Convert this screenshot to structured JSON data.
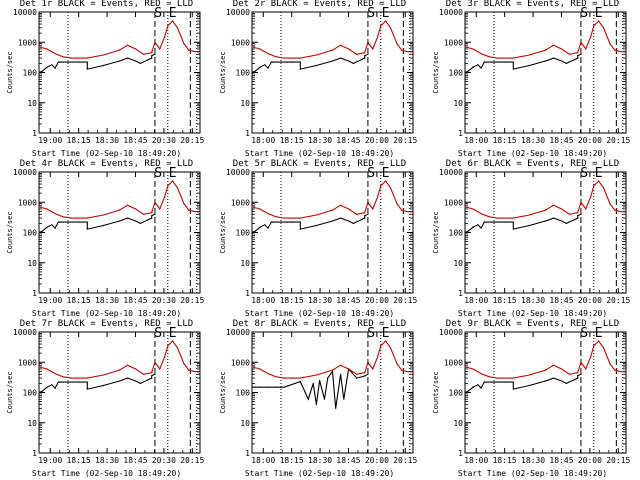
{
  "chart_data": [
    {
      "type": "line",
      "title": "Det 1r BLACK = Events, RED = LLD",
      "xlabel": "Start Time (02-Sep-10 18:49:20)",
      "ylabel": "Counts/sec",
      "xticks": [
        "19:00",
        "18:15",
        "18:30",
        "18:45",
        "20:30",
        "20:15"
      ],
      "yticks": [
        "1",
        "10",
        "100",
        "1000",
        "10000"
      ],
      "ylim": [
        1,
        10000
      ],
      "markers": [
        "S",
        "E"
      ],
      "series": [
        {
          "name": "Events",
          "color": "#000000",
          "x": [
            0,
            0.02,
            0.05,
            0.08,
            0.1,
            0.12,
            0.13,
            0.18,
            0.25,
            0.3,
            0.3,
            0.4,
            0.5,
            0.55,
            0.6,
            0.63,
            0.7,
            0.7,
            0.72
          ],
          "y": [
            100,
            110,
            150,
            180,
            140,
            220,
            220,
            220,
            220,
            220,
            130,
            170,
            240,
            300,
            240,
            200,
            300,
            360,
            400
          ]
        },
        {
          "name": "LLD",
          "color": "#cc0000",
          "x": [
            0,
            0.05,
            0.1,
            0.15,
            0.2,
            0.3,
            0.4,
            0.5,
            0.55,
            0.6,
            0.65,
            0.7,
            0.72,
            0.75,
            0.78,
            0.8,
            0.83,
            0.86,
            0.9,
            0.93,
            0.96,
            1.0
          ],
          "y": [
            700,
            600,
            420,
            330,
            300,
            300,
            380,
            550,
            800,
            600,
            400,
            450,
            1000,
            600,
            1500,
            3500,
            5000,
            3000,
            900,
            550,
            500,
            480
          ]
        }
      ]
    },
    {
      "type": "line",
      "title": "Det 2r BLACK = Events, RED = LLD",
      "xlabel": "Start Time (02-Sep-10 18:49:20)",
      "ylabel": "Counts/sec",
      "xticks": [
        "18:00",
        "18:15",
        "18:30",
        "18:45",
        "20:00",
        "20:15"
      ],
      "yticks": [
        "1",
        "10",
        "100",
        "1000",
        "10000"
      ],
      "ylim": [
        1,
        10000
      ],
      "markers": [
        "S",
        "E"
      ],
      "series": [
        {
          "name": "Events",
          "color": "#000000",
          "x": [
            0,
            0.02,
            0.05,
            0.08,
            0.1,
            0.12,
            0.13,
            0.18,
            0.25,
            0.3,
            0.3,
            0.4,
            0.5,
            0.55,
            0.6,
            0.63,
            0.7,
            0.7,
            0.72
          ],
          "y": [
            100,
            110,
            150,
            180,
            140,
            220,
            220,
            220,
            220,
            220,
            130,
            170,
            240,
            300,
            240,
            200,
            300,
            360,
            400
          ]
        },
        {
          "name": "LLD",
          "color": "#cc0000",
          "x": [
            0,
            0.05,
            0.1,
            0.15,
            0.2,
            0.3,
            0.4,
            0.5,
            0.55,
            0.6,
            0.65,
            0.7,
            0.72,
            0.75,
            0.78,
            0.8,
            0.83,
            0.86,
            0.9,
            0.93,
            0.96,
            1.0
          ],
          "y": [
            700,
            600,
            420,
            330,
            300,
            300,
            380,
            550,
            800,
            600,
            400,
            450,
            1000,
            600,
            1500,
            3500,
            5000,
            3000,
            900,
            550,
            500,
            480
          ]
        }
      ]
    },
    {
      "type": "line",
      "title": "Det 3r BLACK = Events, RED = LLD",
      "xlabel": "Start Time (02-Sep-10 18:49:20)",
      "ylabel": "Counts/sec",
      "xticks": [
        "18:00",
        "18:15",
        "18:30",
        "18:45",
        "20:00",
        "20:15"
      ],
      "yticks": [
        "1",
        "10",
        "100",
        "1000",
        "10000"
      ],
      "ylim": [
        1,
        10000
      ],
      "markers": [
        "S",
        "E"
      ],
      "series": [
        {
          "name": "Events",
          "color": "#000000",
          "x": [
            0,
            0.02,
            0.05,
            0.08,
            0.1,
            0.12,
            0.13,
            0.18,
            0.25,
            0.3,
            0.3,
            0.4,
            0.5,
            0.55,
            0.6,
            0.63,
            0.7,
            0.7,
            0.72
          ],
          "y": [
            100,
            110,
            150,
            180,
            140,
            220,
            220,
            220,
            220,
            220,
            130,
            170,
            240,
            300,
            240,
            200,
            300,
            360,
            400
          ]
        },
        {
          "name": "LLD",
          "color": "#cc0000",
          "x": [
            0,
            0.05,
            0.1,
            0.15,
            0.2,
            0.3,
            0.4,
            0.5,
            0.55,
            0.6,
            0.65,
            0.7,
            0.72,
            0.75,
            0.78,
            0.8,
            0.83,
            0.86,
            0.9,
            0.93,
            0.96,
            1.0
          ],
          "y": [
            700,
            600,
            420,
            330,
            300,
            300,
            380,
            550,
            800,
            600,
            400,
            450,
            1000,
            600,
            1500,
            3500,
            5000,
            3000,
            900,
            550,
            500,
            480
          ]
        }
      ]
    },
    {
      "type": "line",
      "title": "Det 4r BLACK = Events, RED = LLD",
      "xlabel": "Start Time (02-Sep-10 18:49:20)",
      "ylabel": "Counts/sec",
      "xticks": [
        "19:00",
        "18:15",
        "18:30",
        "18:45",
        "20:30",
        "20:15"
      ],
      "yticks": [
        "1",
        "10",
        "100",
        "1000",
        "10000"
      ],
      "ylim": [
        1,
        10000
      ],
      "markers": [
        "S",
        "E"
      ],
      "series": [
        {
          "name": "Events",
          "color": "#000000",
          "x": [
            0,
            0.02,
            0.05,
            0.08,
            0.1,
            0.12,
            0.13,
            0.18,
            0.25,
            0.3,
            0.3,
            0.4,
            0.5,
            0.55,
            0.6,
            0.63,
            0.7,
            0.7,
            0.72
          ],
          "y": [
            100,
            110,
            150,
            180,
            140,
            220,
            220,
            220,
            220,
            220,
            130,
            170,
            240,
            300,
            240,
            200,
            300,
            360,
            400
          ]
        },
        {
          "name": "LLD",
          "color": "#cc0000",
          "x": [
            0,
            0.05,
            0.1,
            0.15,
            0.2,
            0.3,
            0.4,
            0.5,
            0.55,
            0.6,
            0.65,
            0.7,
            0.72,
            0.75,
            0.78,
            0.8,
            0.83,
            0.86,
            0.9,
            0.93,
            0.96,
            1.0
          ],
          "y": [
            700,
            600,
            420,
            330,
            300,
            300,
            380,
            550,
            800,
            600,
            400,
            450,
            1000,
            600,
            1500,
            3500,
            5000,
            3000,
            900,
            550,
            500,
            480
          ]
        }
      ]
    },
    {
      "type": "line",
      "title": "Det 5r BLACK = Events, RED = LLD",
      "xlabel": "Start Time (02-Sep-10 18:49:20)",
      "ylabel": "Counts/sec",
      "xticks": [
        "18:00",
        "18:15",
        "18:30",
        "18:45",
        "20:00",
        "20:15"
      ],
      "yticks": [
        "1",
        "10",
        "100",
        "1000",
        "10000"
      ],
      "ylim": [
        1,
        10000
      ],
      "markers": [
        "S",
        "E"
      ],
      "series": [
        {
          "name": "Events",
          "color": "#000000",
          "x": [
            0,
            0.02,
            0.05,
            0.08,
            0.1,
            0.12,
            0.13,
            0.18,
            0.25,
            0.3,
            0.3,
            0.4,
            0.5,
            0.55,
            0.6,
            0.63,
            0.7,
            0.7,
            0.72
          ],
          "y": [
            100,
            110,
            150,
            180,
            140,
            220,
            220,
            220,
            220,
            220,
            130,
            170,
            240,
            300,
            240,
            200,
            300,
            360,
            400
          ]
        },
        {
          "name": "LLD",
          "color": "#cc0000",
          "x": [
            0,
            0.05,
            0.1,
            0.15,
            0.2,
            0.3,
            0.4,
            0.5,
            0.55,
            0.6,
            0.65,
            0.7,
            0.72,
            0.75,
            0.78,
            0.8,
            0.83,
            0.86,
            0.9,
            0.93,
            0.96,
            1.0
          ],
          "y": [
            700,
            600,
            420,
            330,
            300,
            300,
            380,
            550,
            800,
            600,
            400,
            450,
            1000,
            600,
            1500,
            3500,
            5000,
            3000,
            900,
            550,
            500,
            480
          ]
        }
      ]
    },
    {
      "type": "line",
      "title": "Det 6r BLACK = Events, RED = LLD",
      "xlabel": "Start Time (02-Sep-10 18:49:20)",
      "ylabel": "Counts/sec",
      "xticks": [
        "18:00",
        "18:15",
        "18:30",
        "18:45",
        "20:00",
        "20:15"
      ],
      "yticks": [
        "1",
        "10",
        "100",
        "1000",
        "10000"
      ],
      "ylim": [
        1,
        10000
      ],
      "markers": [
        "S",
        "E"
      ],
      "series": [
        {
          "name": "Events",
          "color": "#000000",
          "x": [
            0,
            0.02,
            0.05,
            0.08,
            0.1,
            0.12,
            0.13,
            0.18,
            0.25,
            0.3,
            0.3,
            0.4,
            0.5,
            0.55,
            0.6,
            0.63,
            0.7,
            0.7,
            0.72
          ],
          "y": [
            100,
            110,
            150,
            180,
            140,
            220,
            220,
            220,
            220,
            220,
            130,
            170,
            240,
            300,
            240,
            200,
            300,
            360,
            400
          ]
        },
        {
          "name": "LLD",
          "color": "#cc0000",
          "x": [
            0,
            0.05,
            0.1,
            0.15,
            0.2,
            0.3,
            0.4,
            0.5,
            0.55,
            0.6,
            0.65,
            0.7,
            0.72,
            0.75,
            0.78,
            0.8,
            0.83,
            0.86,
            0.9,
            0.93,
            0.96,
            1.0
          ],
          "y": [
            700,
            600,
            420,
            330,
            300,
            300,
            380,
            550,
            800,
            600,
            400,
            450,
            1000,
            600,
            1500,
            3500,
            5000,
            3000,
            900,
            550,
            500,
            480
          ]
        }
      ]
    },
    {
      "type": "line",
      "title": "Det 7r BLACK = Events, RED = LLD",
      "xlabel": "Start Time (02-Sep-10 18:49:20)",
      "ylabel": "Counts/sec",
      "xticks": [
        "19:00",
        "18:15",
        "18:30",
        "18:45",
        "20:30",
        "20:15"
      ],
      "yticks": [
        "1",
        "10",
        "100",
        "1000",
        "10000"
      ],
      "ylim": [
        1,
        10000
      ],
      "markers": [
        "S",
        "E"
      ],
      "series": [
        {
          "name": "Events",
          "color": "#000000",
          "x": [
            0,
            0.02,
            0.05,
            0.08,
            0.1,
            0.12,
            0.13,
            0.18,
            0.25,
            0.3,
            0.3,
            0.4,
            0.5,
            0.55,
            0.6,
            0.63,
            0.7,
            0.7,
            0.72
          ],
          "y": [
            100,
            110,
            150,
            180,
            140,
            220,
            220,
            220,
            220,
            220,
            130,
            170,
            240,
            300,
            240,
            200,
            300,
            360,
            400
          ]
        },
        {
          "name": "LLD",
          "color": "#cc0000",
          "x": [
            0,
            0.05,
            0.1,
            0.15,
            0.2,
            0.3,
            0.4,
            0.5,
            0.55,
            0.6,
            0.65,
            0.7,
            0.72,
            0.75,
            0.78,
            0.8,
            0.83,
            0.86,
            0.9,
            0.93,
            0.96,
            1.0
          ],
          "y": [
            700,
            600,
            420,
            330,
            300,
            300,
            380,
            550,
            800,
            600,
            400,
            450,
            1000,
            600,
            1500,
            3500,
            5000,
            3000,
            900,
            550,
            500,
            480
          ]
        }
      ]
    },
    {
      "type": "line",
      "title": "Det 8r BLACK = Events, RED = LLD",
      "xlabel": "Start Time (02-Sep-10 18:49:20)",
      "ylabel": "Counts/sec",
      "xticks": [
        "18:00",
        "18:15",
        "18:30",
        "18:45",
        "20:00",
        "20:15"
      ],
      "yticks": [
        "1",
        "10",
        "100",
        "1000",
        "10000"
      ],
      "ylim": [
        1,
        10000
      ],
      "markers": [
        "S",
        "E"
      ],
      "series": [
        {
          "name": "Events",
          "color": "#000000",
          "x": [
            0,
            0.05,
            0.1,
            0.15,
            0.2,
            0.3,
            0.35,
            0.38,
            0.4,
            0.42,
            0.45,
            0.47,
            0.5,
            0.52,
            0.55,
            0.57,
            0.6,
            0.65,
            0.7,
            0.72
          ],
          "y": [
            150,
            150,
            150,
            150,
            150,
            230,
            60,
            200,
            40,
            250,
            60,
            300,
            500,
            30,
            400,
            60,
            600,
            300,
            350,
            400
          ]
        },
        {
          "name": "LLD",
          "color": "#cc0000",
          "x": [
            0,
            0.05,
            0.1,
            0.15,
            0.2,
            0.3,
            0.4,
            0.5,
            0.55,
            0.6,
            0.65,
            0.7,
            0.72,
            0.75,
            0.78,
            0.8,
            0.83,
            0.86,
            0.9,
            0.93,
            0.96,
            1.0
          ],
          "y": [
            700,
            600,
            420,
            330,
            300,
            300,
            380,
            550,
            800,
            600,
            400,
            450,
            1000,
            600,
            1500,
            3500,
            5000,
            3000,
            900,
            550,
            500,
            480
          ]
        }
      ]
    },
    {
      "type": "line",
      "title": "Det 9r BLACK = Events, RED = LLD",
      "xlabel": "Start Time (02-Sep-10 18:49:20)",
      "ylabel": "Counts/sec",
      "xticks": [
        "18:00",
        "18:15",
        "18:30",
        "18:45",
        "20:00",
        "20:15"
      ],
      "yticks": [
        "1",
        "10",
        "100",
        "1000",
        "10000"
      ],
      "ylim": [
        1,
        10000
      ],
      "markers": [
        "S",
        "E"
      ],
      "series": [
        {
          "name": "Events",
          "color": "#000000",
          "x": [
            0,
            0.02,
            0.05,
            0.08,
            0.1,
            0.12,
            0.13,
            0.18,
            0.25,
            0.3,
            0.3,
            0.4,
            0.5,
            0.55,
            0.6,
            0.63,
            0.7,
            0.7,
            0.72
          ],
          "y": [
            100,
            110,
            150,
            180,
            140,
            220,
            220,
            220,
            220,
            220,
            130,
            170,
            240,
            300,
            240,
            200,
            300,
            360,
            400
          ]
        },
        {
          "name": "LLD",
          "color": "#cc0000",
          "x": [
            0,
            0.05,
            0.1,
            0.15,
            0.2,
            0.3,
            0.4,
            0.5,
            0.55,
            0.6,
            0.65,
            0.7,
            0.72,
            0.75,
            0.78,
            0.8,
            0.83,
            0.86,
            0.9,
            0.93,
            0.96,
            1.0
          ],
          "y": [
            700,
            600,
            420,
            330,
            300,
            300,
            380,
            550,
            800,
            600,
            400,
            450,
            1000,
            600,
            1500,
            3500,
            5000,
            3000,
            900,
            550,
            500,
            480
          ]
        }
      ]
    }
  ]
}
